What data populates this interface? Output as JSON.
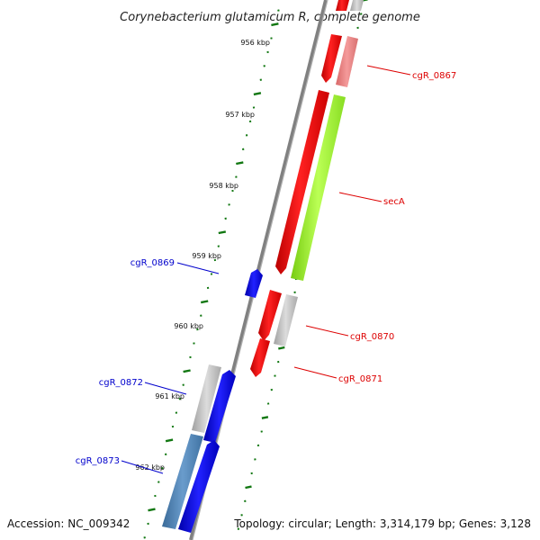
{
  "title": "Corynebacterium glutamicum R, complete genome",
  "footer": {
    "accession": "Accession: NC_009342",
    "stats": "Topology: circular; Length: 3,314,179 bp; Genes: 3,128"
  },
  "ruler": [
    "956 kbp",
    "957 kbp",
    "958 kbp",
    "959 kbp",
    "960 kbp",
    "961 kbp",
    "962 kbp"
  ],
  "gene_labels": [
    {
      "text": "cgR_0867",
      "color": "#dd0000"
    },
    {
      "text": "secA",
      "color": "#dd0000"
    },
    {
      "text": "cgR_0869",
      "color": "#0000cc"
    },
    {
      "text": "cgR_0870",
      "color": "#dd0000"
    },
    {
      "text": "cgR_0871",
      "color": "#dd0000"
    },
    {
      "text": "cgR_0872",
      "color": "#0000cc"
    },
    {
      "text": "cgR_0873",
      "color": "#0000cc"
    }
  ],
  "colors": {
    "cds": "#ee0000",
    "cds_highlight": "#f08080",
    "seca_match": "#99ee22",
    "reverse_cds": "#0000ee",
    "gray_track": "#b8b8b8",
    "steel_track": "#4a7fb0",
    "ruler_tick": "#117711",
    "backbone": "#888888"
  }
}
